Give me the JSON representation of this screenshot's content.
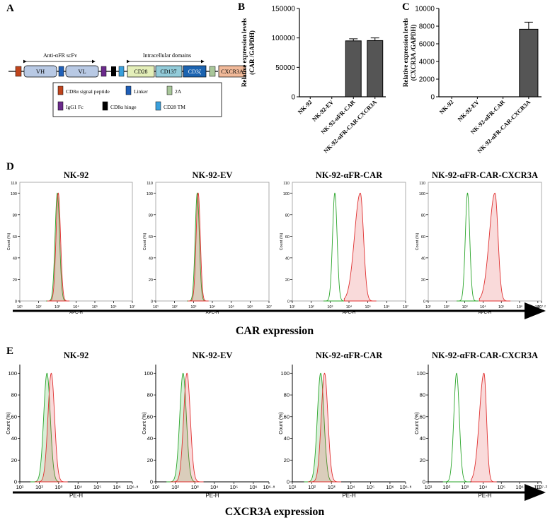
{
  "panels": {
    "A": "A",
    "B": "B",
    "C": "C",
    "D": "D",
    "E": "E"
  },
  "construct": {
    "scfv_label": "Anti-αFR scFv",
    "intracellular_label": "Intracellular domains",
    "vh": "VH",
    "vl": "VL",
    "cd28": "CD28",
    "cd137": "CD137",
    "cd3z": "CD3ζ",
    "cxcr3a": "CXCR3A",
    "legend": [
      {
        "color": "#c0441c",
        "label": "CD8α signal peptide"
      },
      {
        "color": "#1f5fb8",
        "label": "Linker"
      },
      {
        "color": "#a9c79a",
        "label": "2A"
      },
      {
        "color": "#6b2a8c",
        "label": "IgG1 Fc"
      },
      {
        "color": "#000000",
        "label": "CD8α hinge"
      },
      {
        "color": "#3aa0dc",
        "label": "CD28 TM"
      }
    ]
  },
  "chart_data": [
    {
      "type": "bar",
      "panel": "B",
      "categories": [
        "NK-92",
        "NK-92-EV",
        "NK-92-αFR-CAR",
        "NK-92-αFR-CAR-CXCR3A"
      ],
      "values": [
        0,
        0,
        95000,
        95500
      ],
      "errors": [
        0,
        0,
        3500,
        4500
      ],
      "ylabel": [
        "Relative expression levels",
        "(CAR /GAPDH)"
      ],
      "ylim": [
        0,
        150000
      ],
      "yticks": [
        0,
        50000,
        100000,
        150000
      ],
      "color": "#555555"
    },
    {
      "type": "bar",
      "panel": "C",
      "categories": [
        "NK-92",
        "NK-92-EV",
        "NK-92-αFR-CAR",
        "NK-92-αFR-CAR-CXCR3A"
      ],
      "values": [
        0,
        0,
        0,
        7650
      ],
      "errors": [
        0,
        0,
        0,
        800
      ],
      "ylabel": [
        "Relative expression levels",
        "(CXCR3A /GAPDH)"
      ],
      "ylim": [
        0,
        10000
      ],
      "yticks": [
        0,
        2000,
        4000,
        6000,
        8000,
        10000
      ],
      "color": "#555555"
    },
    {
      "type": "area",
      "panel": "D",
      "xlabel": "APC-H",
      "ylabel": "Count (%)",
      "yticks": [
        0,
        20,
        40,
        60,
        80,
        100
      ],
      "ytick_top": "110",
      "arrow_label": "CAR expression",
      "plots": [
        {
          "title": "NK-92",
          "xmax_exp": 7,
          "top_label": "10⁷",
          "green_peak": 3.0,
          "red_peak": 3.05,
          "green_sd": 0.12,
          "red_sd": 0.12,
          "green_fill": true,
          "red_fill": true
        },
        {
          "title": "NK-92-EV",
          "xmax_exp": 7,
          "top_label": "10⁷",
          "green_peak": 3.2,
          "red_peak": 3.25,
          "green_sd": 0.11,
          "red_sd": 0.11,
          "green_fill": true,
          "red_fill": true
        },
        {
          "title": "NK-92-αFR-CAR",
          "xmax_exp": 7,
          "top_label": "10⁷",
          "green_peak": 3.25,
          "red_peak": 4.6,
          "green_sd": 0.12,
          "red_sd": 0.17,
          "green_fill": false,
          "red_fill": true
        },
        {
          "title": "NK-92-αFR-CAR-CXCR3A",
          "xmax_exp": 7.2,
          "top_label": "10⁷·²",
          "green_peak": 3.15,
          "red_peak": 4.65,
          "green_sd": 0.12,
          "red_sd": 0.17,
          "green_fill": false,
          "red_fill": true
        }
      ]
    },
    {
      "type": "area",
      "panel": "E",
      "xlabel": "PE-H",
      "ylabel": "Count (%)",
      "yticks": [
        0,
        20,
        40,
        60,
        80,
        100
      ],
      "arrow_label": "CXCR3A expression",
      "plots": [
        {
          "title": "NK-92",
          "xmax_exp": 6.8,
          "top_label": "10⁶·⁸",
          "green_peak": 2.4,
          "red_peak": 2.62,
          "green_sd": 0.17,
          "red_sd": 0.17,
          "green_fill": true,
          "red_fill": true
        },
        {
          "title": "NK-92-EV",
          "xmax_exp": 6.8,
          "top_label": "10⁶·⁸",
          "green_peak": 2.4,
          "red_peak": 2.6,
          "green_sd": 0.17,
          "red_sd": 0.17,
          "green_fill": true,
          "red_fill": true
        },
        {
          "title": "NK-92-αFR-CAR",
          "xmax_exp": 6.8,
          "top_label": "10⁶·⁸",
          "green_peak": 2.45,
          "red_peak": 2.65,
          "green_sd": 0.17,
          "red_sd": 0.17,
          "green_fill": true,
          "red_fill": true
        },
        {
          "title": "NK-92-αFR-CAR-CXCR3A",
          "xmax_exp": 7.2,
          "top_label": "10⁷·²",
          "green_peak": 2.55,
          "red_peak": 4.05,
          "green_sd": 0.15,
          "red_sd": 0.14,
          "green_fill": false,
          "red_fill": true
        }
      ]
    }
  ]
}
